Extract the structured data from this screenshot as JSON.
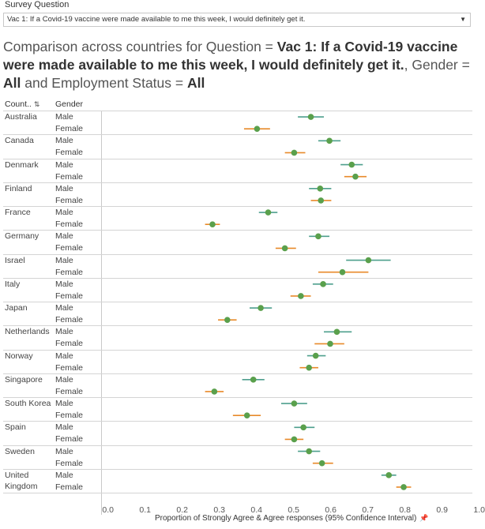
{
  "filter": {
    "label": "Survey Question",
    "value": "Vac 1: If a Covid-19 vaccine were made available to me this week, I would definitely get it.",
    "arrow_icon": "triangle-down-icon"
  },
  "title": {
    "prefix": "Comparison across countries for Question = ",
    "question": "Vac 1: If a Covid-19 vaccine were made available to me this week, I would definitely get it.",
    "gender_prefix": ", Gender = ",
    "gender": "All",
    "employment_prefix": " and Employment Status = ",
    "employment": "All"
  },
  "headers": {
    "country": "Count..",
    "gender": "Gender",
    "sort_icon": "sort-icon"
  },
  "colors": {
    "male_ci": "#4e9f8d",
    "female_ci": "#e88a2a",
    "point": "#5aa04c"
  },
  "chart_data": {
    "type": "scatter",
    "subtype": "point estimate with 95% confidence interval",
    "xlabel": "Proportion of Strongly Agree & Agree responses (95% Confidence Interval)",
    "xlim": [
      -0.02,
      0.98
    ],
    "xticks": [
      "0.0",
      "0.1",
      "0.2",
      "0.3",
      "0.4",
      "0.5",
      "0.6",
      "0.7",
      "0.8",
      "0.9",
      "1.0"
    ],
    "grid": false,
    "rows": [
      {
        "country": "Australia",
        "genders": [
          {
            "gender": "Male",
            "value": 0.545,
            "low": 0.51,
            "high": 0.58
          },
          {
            "gender": "Female",
            "value": 0.4,
            "low": 0.365,
            "high": 0.435
          }
        ]
      },
      {
        "country": "Canada",
        "genders": [
          {
            "gender": "Male",
            "value": 0.595,
            "low": 0.565,
            "high": 0.625
          },
          {
            "gender": "Female",
            "value": 0.5,
            "low": 0.475,
            "high": 0.53
          }
        ]
      },
      {
        "country": "Denmark",
        "genders": [
          {
            "gender": "Male",
            "value": 0.655,
            "low": 0.625,
            "high": 0.685
          },
          {
            "gender": "Female",
            "value": 0.665,
            "low": 0.635,
            "high": 0.695
          }
        ]
      },
      {
        "country": "Finland",
        "genders": [
          {
            "gender": "Male",
            "value": 0.57,
            "low": 0.54,
            "high": 0.6
          },
          {
            "gender": "Female",
            "value": 0.572,
            "low": 0.545,
            "high": 0.6
          }
        ]
      },
      {
        "country": "France",
        "genders": [
          {
            "gender": "Male",
            "value": 0.43,
            "low": 0.405,
            "high": 0.455
          },
          {
            "gender": "Female",
            "value": 0.28,
            "low": 0.26,
            "high": 0.3
          }
        ]
      },
      {
        "country": "Germany",
        "genders": [
          {
            "gender": "Male",
            "value": 0.565,
            "low": 0.54,
            "high": 0.595
          },
          {
            "gender": "Female",
            "value": 0.475,
            "low": 0.45,
            "high": 0.505
          }
        ]
      },
      {
        "country": "Israel",
        "genders": [
          {
            "gender": "Male",
            "value": 0.7,
            "low": 0.64,
            "high": 0.76
          },
          {
            "gender": "Female",
            "value": 0.63,
            "low": 0.565,
            "high": 0.7
          }
        ]
      },
      {
        "country": "Italy",
        "genders": [
          {
            "gender": "Male",
            "value": 0.578,
            "low": 0.55,
            "high": 0.605
          },
          {
            "gender": "Female",
            "value": 0.518,
            "low": 0.49,
            "high": 0.545
          }
        ]
      },
      {
        "country": "Japan",
        "genders": [
          {
            "gender": "Male",
            "value": 0.41,
            "low": 0.38,
            "high": 0.44
          },
          {
            "gender": "Female",
            "value": 0.32,
            "low": 0.295,
            "high": 0.345
          }
        ]
      },
      {
        "country": "Netherlands",
        "genders": [
          {
            "gender": "Male",
            "value": 0.615,
            "low": 0.58,
            "high": 0.655
          },
          {
            "gender": "Female",
            "value": 0.597,
            "low": 0.555,
            "high": 0.635
          }
        ]
      },
      {
        "country": "Norway",
        "genders": [
          {
            "gender": "Male",
            "value": 0.558,
            "low": 0.535,
            "high": 0.585
          },
          {
            "gender": "Female",
            "value": 0.54,
            "low": 0.515,
            "high": 0.565
          }
        ]
      },
      {
        "country": "Singapore",
        "genders": [
          {
            "gender": "Male",
            "value": 0.39,
            "low": 0.36,
            "high": 0.42
          },
          {
            "gender": "Female",
            "value": 0.285,
            "low": 0.26,
            "high": 0.31
          }
        ]
      },
      {
        "country": "South Korea",
        "genders": [
          {
            "gender": "Male",
            "value": 0.5,
            "low": 0.465,
            "high": 0.535
          },
          {
            "gender": "Female",
            "value": 0.373,
            "low": 0.335,
            "high": 0.41
          }
        ]
      },
      {
        "country": "Spain",
        "genders": [
          {
            "gender": "Male",
            "value": 0.525,
            "low": 0.5,
            "high": 0.555
          },
          {
            "gender": "Female",
            "value": 0.5,
            "low": 0.475,
            "high": 0.525
          }
        ]
      },
      {
        "country": "Sweden",
        "genders": [
          {
            "gender": "Male",
            "value": 0.54,
            "low": 0.51,
            "high": 0.57
          },
          {
            "gender": "Female",
            "value": 0.575,
            "low": 0.55,
            "high": 0.605
          }
        ]
      },
      {
        "country": "United Kingdom",
        "country_lines": [
          "United",
          "Kingdom"
        ],
        "genders": [
          {
            "gender": "Male",
            "value": 0.755,
            "low": 0.735,
            "high": 0.775
          },
          {
            "gender": "Female",
            "value": 0.795,
            "low": 0.775,
            "high": 0.815
          }
        ]
      }
    ]
  }
}
